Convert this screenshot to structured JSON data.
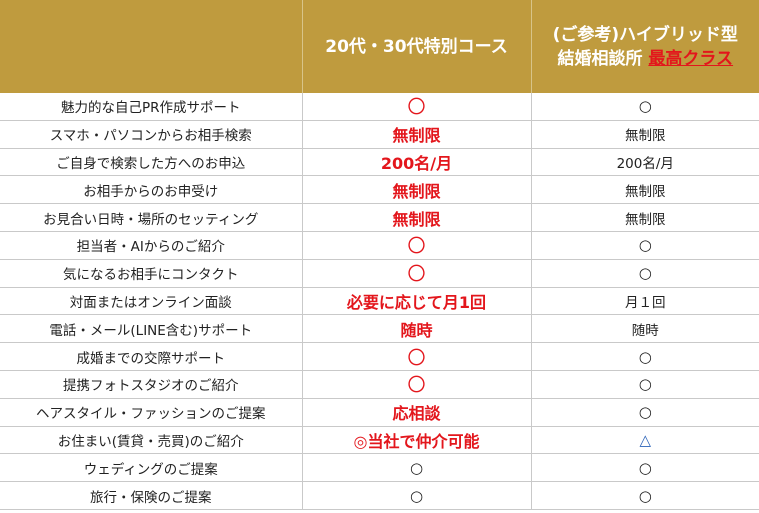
{
  "header": {
    "col1": "20代・30代特別コース",
    "col2_line1": "(ご参考)ハイブリッド型",
    "col2_line2_prefix": "結婚相談所 ",
    "col2_line2_highlight": "最高クラス"
  },
  "rows": [
    {
      "label": "魅力的な自己PR作成サポート",
      "special": "〇",
      "hybrid": "○"
    },
    {
      "label": "スマホ・パソコンからお相手検索",
      "special": "無制限",
      "hybrid": "無制限"
    },
    {
      "label": "ご自身で検索した方へのお申込",
      "special": "200名/月",
      "hybrid": "200名/月"
    },
    {
      "label": "お相手からのお申受け",
      "special": "無制限",
      "hybrid": "無制限"
    },
    {
      "label": "お見合い日時・場所のセッティング",
      "special": "無制限",
      "hybrid": "無制限"
    },
    {
      "label": "担当者・AIからのご紹介",
      "special": "〇",
      "hybrid": "○"
    },
    {
      "label": "気になるお相手にコンタクト",
      "special": "〇",
      "hybrid": "○"
    },
    {
      "label": "対面またはオンライン面談",
      "special": "必要に応じて月1回",
      "hybrid": "月１回"
    },
    {
      "label": "電話・メール(LINE含む)サポート",
      "special": "随時",
      "hybrid": "随時"
    },
    {
      "label": "成婚までの交際サポート",
      "special": "〇",
      "hybrid": "○"
    },
    {
      "label": "提携フォトスタジオのご紹介",
      "special": "〇",
      "hybrid": "○"
    },
    {
      "label": "ヘアスタイル・ファッションのご提案",
      "special": "応相談",
      "hybrid": "○"
    },
    {
      "label": "お住まい(賃貸・売買)のご紹介",
      "special": "◎当社で仲介可能",
      "hybrid": "△"
    },
    {
      "label": "ウェディングのご提案",
      "special": "○",
      "hybrid": "○"
    },
    {
      "label": "旅行・保険のご提案",
      "special": "○",
      "hybrid": "○"
    }
  ],
  "colors": {
    "header_bg": "#bf9b3e",
    "accent_red": "#e3161c",
    "triangle_blue": "#2c63b8"
  }
}
